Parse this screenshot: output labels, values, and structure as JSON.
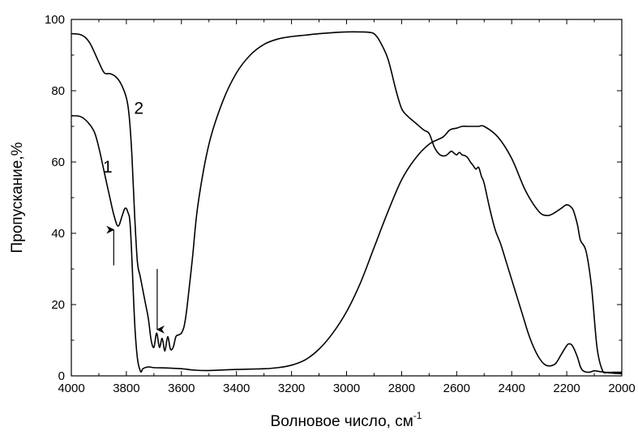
{
  "chart_data": {
    "type": "line",
    "title": "",
    "xlabel": "Волновое число, см",
    "xlabel_superscript": "-1",
    "ylabel": "Пропускание,%",
    "xlim": [
      4000,
      2000
    ],
    "ylim": [
      0,
      100
    ],
    "x_reversed": true,
    "x_ticks": [
      "4000",
      "3800",
      "3600",
      "3400",
      "3200",
      "3000",
      "2800",
      "2600",
      "2400",
      "2200",
      "2000"
    ],
    "y_ticks": [
      "0",
      "20",
      "40",
      "60",
      "80",
      "100"
    ],
    "grid": false,
    "legend": "none",
    "series": [
      {
        "name": "1",
        "x": [
          4000,
          3960,
          3920,
          3900,
          3880,
          3860,
          3845,
          3830,
          3815,
          3805,
          3795,
          3785,
          3770,
          3760,
          3750,
          3745,
          3740,
          3720,
          3700,
          3650,
          3600,
          3550,
          3500,
          3400,
          3300,
          3250,
          3200,
          3150,
          3100,
          3050,
          3000,
          2950,
          2900,
          2850,
          2800,
          2750,
          2700,
          2650,
          2625,
          2600,
          2580,
          2560,
          2540,
          2520,
          2500,
          2450,
          2400,
          2350,
          2300,
          2270,
          2250,
          2220,
          2200,
          2180,
          2170,
          2160,
          2150,
          2130,
          2110,
          2090,
          2070,
          2050,
          2030,
          2000
        ],
        "y": [
          73,
          72.5,
          69,
          64,
          57,
          50,
          45,
          42,
          45,
          47,
          46,
          41,
          15,
          5,
          1.5,
          1.2,
          2,
          2.5,
          2.3,
          2.2,
          2,
          1.6,
          1.5,
          1.8,
          2,
          2.3,
          3,
          4.5,
          7.5,
          12,
          18,
          26,
          36,
          46,
          55,
          61,
          65,
          67,
          69,
          69.5,
          70,
          70,
          70,
          70,
          70,
          67,
          61,
          52,
          46,
          45,
          45.5,
          47,
          48,
          47,
          45,
          42,
          38,
          35,
          25,
          8,
          1.5,
          1,
          1,
          1
        ]
      },
      {
        "name": "2",
        "x": [
          4000,
          3970,
          3950,
          3930,
          3900,
          3880,
          3860,
          3840,
          3820,
          3800,
          3790,
          3780,
          3770,
          3760,
          3750,
          3740,
          3730,
          3720,
          3710,
          3700,
          3690,
          3680,
          3670,
          3660,
          3650,
          3640,
          3630,
          3620,
          3610,
          3600,
          3590,
          3580,
          3560,
          3540,
          3500,
          3450,
          3400,
          3350,
          3300,
          3250,
          3200,
          3150,
          3100,
          3050,
          3000,
          2950,
          2920,
          2900,
          2880,
          2850,
          2820,
          2800,
          2780,
          2750,
          2720,
          2700,
          2680,
          2660,
          2640,
          2620,
          2610,
          2600,
          2590,
          2580,
          2570,
          2560,
          2550,
          2540,
          2530,
          2520,
          2510,
          2500,
          2480,
          2460,
          2440,
          2420,
          2400,
          2380,
          2360,
          2340,
          2320,
          2300,
          2280,
          2260,
          2240,
          2220,
          2200,
          2190,
          2180,
          2170,
          2160,
          2150,
          2140,
          2120,
          2100,
          2080,
          2060,
          2040,
          2020,
          2000
        ],
        "y": [
          96,
          95.8,
          95,
          93,
          88,
          85,
          84.8,
          84,
          82,
          78,
          73,
          62,
          45,
          32,
          28,
          24,
          20,
          16,
          10,
          8,
          12,
          8,
          10.5,
          7,
          11,
          7.5,
          8,
          11,
          11.5,
          12,
          14,
          19,
          33,
          48,
          65,
          77,
          85,
          90,
          93,
          94.5,
          95.2,
          95.6,
          96,
          96.3,
          96.5,
          96.5,
          96.4,
          96,
          94,
          89,
          80,
          75,
          73,
          71,
          69,
          68,
          64,
          62,
          61.8,
          63,
          62.5,
          62,
          62.7,
          62,
          61.8,
          61.2,
          60,
          59,
          58,
          58.5,
          56,
          54,
          47,
          41,
          37,
          32,
          27,
          22,
          17,
          12,
          8,
          5,
          3.2,
          2.8,
          3.5,
          6,
          8.5,
          9,
          8.5,
          7,
          5,
          2.5,
          1.4,
          1,
          1.4,
          1.2,
          1,
          0.8,
          0.7,
          0.6
        ]
      }
    ],
    "annotations": [
      {
        "text": "1",
        "x": 3868,
        "y": 57
      },
      {
        "text": "2",
        "x": 3755,
        "y": 73.5
      },
      {
        "text": "",
        "type": "arrow-up",
        "x": 3846,
        "y_from": 31,
        "y_to": 41
      },
      {
        "text": "",
        "type": "arrow-down",
        "x": 3688,
        "y_from": 30,
        "y_to": 13
      }
    ]
  }
}
